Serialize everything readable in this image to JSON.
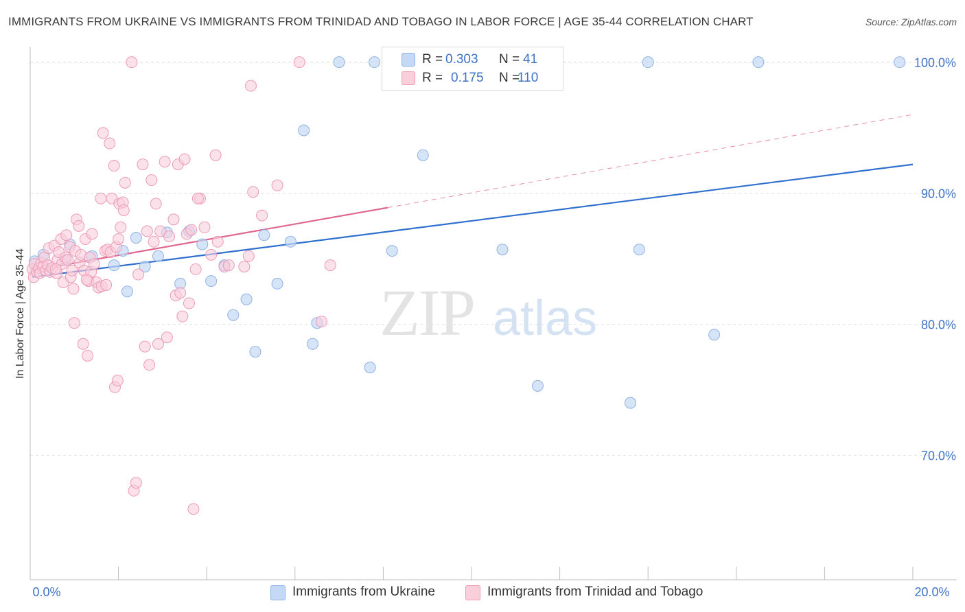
{
  "title": "IMMIGRANTS FROM UKRAINE VS IMMIGRANTS FROM TRINIDAD AND TOBAGO IN LABOR FORCE | AGE 35-44 CORRELATION CHART",
  "source": "Source: ZipAtlas.com",
  "watermark": {
    "zip": "ZIP",
    "atlas": "atlas"
  },
  "legend": {
    "r_label": "R =",
    "n_label": "N =",
    "rows": [
      {
        "r": "0.303",
        "n": "41",
        "color": "#a8c4ee"
      },
      {
        "r": "0.175",
        "n": "110",
        "color": "#f5b8cb"
      }
    ]
  },
  "colors": {
    "ukraine_fill": "#c5d8f5",
    "ukraine_stroke": "#8fb2e6",
    "ukraine_line": "#2e6fcf",
    "trinidad_fill": "#f9cfdc",
    "trinidad_stroke": "#ee9ab5",
    "trinidad_line": "#e0668f",
    "axis_text": "#3f72c6",
    "grid": "#dcdcdc"
  },
  "chart_data": {
    "type": "scatter",
    "title": "IMMIGRANTS FROM UKRAINE VS IMMIGRANTS FROM TRINIDAD AND TOBAGO IN LABOR FORCE | AGE 35-44 CORRELATION CHART",
    "xlabel": "",
    "ylabel": "In Labor Force | Age 35-44",
    "xlim": [
      0,
      20
    ],
    "ylim": [
      60.5,
      101.5
    ],
    "x_tick_labels": [
      "0.0%",
      "20.0%"
    ],
    "y_ticks": [
      70,
      80,
      90,
      100
    ],
    "y_tick_labels": [
      "70.0%",
      "80.0%",
      "90.0%",
      "100.0%"
    ],
    "grid": true,
    "legend_position": "top-center",
    "series": [
      {
        "name": "Immigrants from Ukraine",
        "r": 0.303,
        "n": 41,
        "trend": {
          "x": [
            0.05,
            20
          ],
          "y": [
            83.6,
            92.2
          ],
          "style": "solid"
        },
        "points": [
          [
            0.1,
            84.8
          ],
          [
            0.3,
            85.3
          ],
          [
            0.4,
            84.2
          ],
          [
            0.8,
            84.9
          ],
          [
            0.9,
            86.1
          ],
          [
            1.4,
            85.2
          ],
          [
            1.9,
            84.5
          ],
          [
            2.1,
            85.6
          ],
          [
            2.2,
            82.5
          ],
          [
            2.4,
            86.6
          ],
          [
            2.6,
            84.4
          ],
          [
            2.9,
            85.2
          ],
          [
            3.1,
            87.0
          ],
          [
            3.4,
            83.1
          ],
          [
            3.6,
            87.1
          ],
          [
            3.9,
            86.1
          ],
          [
            4.1,
            83.3
          ],
          [
            4.4,
            84.5
          ],
          [
            4.6,
            80.7
          ],
          [
            4.9,
            81.9
          ],
          [
            5.1,
            77.9
          ],
          [
            5.3,
            86.8
          ],
          [
            5.6,
            83.1
          ],
          [
            5.9,
            86.3
          ],
          [
            6.2,
            94.8
          ],
          [
            6.4,
            78.5
          ],
          [
            6.5,
            80.1
          ],
          [
            7.0,
            100.0
          ],
          [
            7.7,
            76.7
          ],
          [
            7.8,
            100.0
          ],
          [
            8.2,
            85.6
          ],
          [
            8.9,
            92.9
          ],
          [
            10.2,
            100.0
          ],
          [
            10.7,
            85.7
          ],
          [
            11.5,
            75.3
          ],
          [
            13.6,
            74.0
          ],
          [
            13.8,
            85.7
          ],
          [
            14.0,
            100.0
          ],
          [
            15.5,
            79.2
          ],
          [
            16.5,
            100.0
          ],
          [
            19.7,
            100.0
          ]
        ]
      },
      {
        "name": "Immigrants from Trinidad and Tobago",
        "r": 0.175,
        "n": 110,
        "trend": {
          "x": [
            0.05,
            8.1
          ],
          "y": [
            84.1,
            88.9
          ],
          "style": "solid",
          "dashed_extension": {
            "x": [
              8.1,
              20
            ],
            "y": [
              88.9,
              96.0
            ]
          }
        },
        "points": [
          [
            0.05,
            84.2
          ],
          [
            0.08,
            83.6
          ],
          [
            0.1,
            84.6
          ],
          [
            0.15,
            84.0
          ],
          [
            0.2,
            84.3
          ],
          [
            0.22,
            83.9
          ],
          [
            0.25,
            84.7
          ],
          [
            0.3,
            84.4
          ],
          [
            0.32,
            85.1
          ],
          [
            0.35,
            84.1
          ],
          [
            0.4,
            84.5
          ],
          [
            0.42,
            85.8
          ],
          [
            0.45,
            84.0
          ],
          [
            0.5,
            84.3
          ],
          [
            0.55,
            86.0
          ],
          [
            0.6,
            83.9
          ],
          [
            0.62,
            84.9
          ],
          [
            0.65,
            85.5
          ],
          [
            0.7,
            86.5
          ],
          [
            0.72,
            84.6
          ],
          [
            0.75,
            83.2
          ],
          [
            0.8,
            85.1
          ],
          [
            0.82,
            86.8
          ],
          [
            0.85,
            84.9
          ],
          [
            0.9,
            85.9
          ],
          [
            0.92,
            83.6
          ],
          [
            0.95,
            84.1
          ],
          [
            0.98,
            82.7
          ],
          [
            1.0,
            80.1
          ],
          [
            1.02,
            85.6
          ],
          [
            1.05,
            88.0
          ],
          [
            1.1,
            87.5
          ],
          [
            1.12,
            84.7
          ],
          [
            1.15,
            85.3
          ],
          [
            1.2,
            78.5
          ],
          [
            1.22,
            84.1
          ],
          [
            1.25,
            86.5
          ],
          [
            1.3,
            77.6
          ],
          [
            1.32,
            83.3
          ],
          [
            1.35,
            85.1
          ],
          [
            1.38,
            84.0
          ],
          [
            1.4,
            86.9
          ],
          [
            1.45,
            84.6
          ],
          [
            1.5,
            83.2
          ],
          [
            1.55,
            82.8
          ],
          [
            1.6,
            89.6
          ],
          [
            1.62,
            82.9
          ],
          [
            1.65,
            94.6
          ],
          [
            1.7,
            85.6
          ],
          [
            1.72,
            83.0
          ],
          [
            1.75,
            85.7
          ],
          [
            1.8,
            93.8
          ],
          [
            1.82,
            85.5
          ],
          [
            1.85,
            89.6
          ],
          [
            1.9,
            92.1
          ],
          [
            1.92,
            75.2
          ],
          [
            1.95,
            85.9
          ],
          [
            1.98,
            75.7
          ],
          [
            2.0,
            86.5
          ],
          [
            2.02,
            89.2
          ],
          [
            2.05,
            87.4
          ],
          [
            2.1,
            89.3
          ],
          [
            2.12,
            88.7
          ],
          [
            2.15,
            90.8
          ],
          [
            2.3,
            100.0
          ],
          [
            2.35,
            67.3
          ],
          [
            2.4,
            67.9
          ],
          [
            2.45,
            83.8
          ],
          [
            2.55,
            92.2
          ],
          [
            2.6,
            78.3
          ],
          [
            2.65,
            87.1
          ],
          [
            2.7,
            76.9
          ],
          [
            2.75,
            91.0
          ],
          [
            2.8,
            86.3
          ],
          [
            2.85,
            89.2
          ],
          [
            2.9,
            78.5
          ],
          [
            2.95,
            87.1
          ],
          [
            3.05,
            92.4
          ],
          [
            3.1,
            79.0
          ],
          [
            3.15,
            86.7
          ],
          [
            3.25,
            88.0
          ],
          [
            3.3,
            82.2
          ],
          [
            3.35,
            92.2
          ],
          [
            3.4,
            82.4
          ],
          [
            3.45,
            80.6
          ],
          [
            3.5,
            92.6
          ],
          [
            3.55,
            86.9
          ],
          [
            3.6,
            81.6
          ],
          [
            3.65,
            87.2
          ],
          [
            3.7,
            65.9
          ],
          [
            3.75,
            84.2
          ],
          [
            3.85,
            89.6
          ],
          [
            3.95,
            87.4
          ],
          [
            4.1,
            85.3
          ],
          [
            4.2,
            92.9
          ],
          [
            4.25,
            86.3
          ],
          [
            4.4,
            84.4
          ],
          [
            4.5,
            84.5
          ],
          [
            4.85,
            84.4
          ],
          [
            4.95,
            85.2
          ],
          [
            5.0,
            98.2
          ],
          [
            5.05,
            90.1
          ],
          [
            5.25,
            88.3
          ],
          [
            5.6,
            90.6
          ],
          [
            6.1,
            100.0
          ],
          [
            6.6,
            80.2
          ],
          [
            6.8,
            84.5
          ],
          [
            3.8,
            89.6
          ],
          [
            1.28,
            83.4
          ],
          [
            0.58,
            84.2
          ]
        ]
      }
    ]
  }
}
